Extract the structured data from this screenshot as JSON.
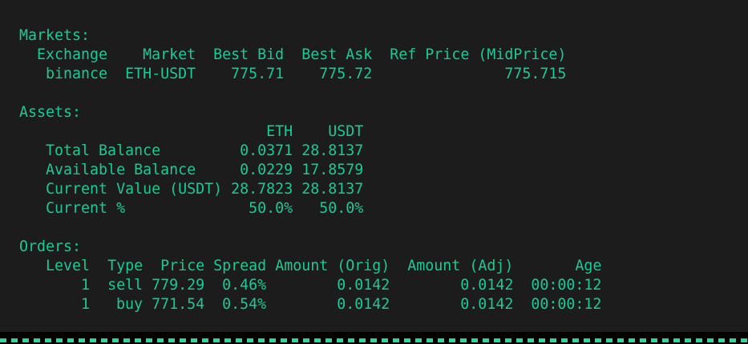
{
  "terminal": {
    "background_color": "#1c1c1c",
    "text_color": "#1cc995",
    "separator_color": "#2fd6a3"
  },
  "markets": {
    "heading": "Markets:",
    "columns": [
      "Exchange",
      "Market",
      "Best Bid",
      "Best Ask",
      "Ref Price (MidPrice)"
    ],
    "rows": [
      {
        "exchange": "binance",
        "market": "ETH-USDT",
        "best_bid": "775.71",
        "best_ask": "775.72",
        "ref_price": "775.715"
      }
    ]
  },
  "assets": {
    "heading": "Assets:",
    "columns": [
      "ETH",
      "USDT"
    ],
    "rows": [
      {
        "label": "Total Balance",
        "eth": "0.0371",
        "usdt": "28.8137"
      },
      {
        "label": "Available Balance",
        "eth": "0.0229",
        "usdt": "17.8579"
      },
      {
        "label": "Current Value (USDT)",
        "eth": "28.7823",
        "usdt": "28.8137"
      },
      {
        "label": "Current %",
        "eth": "50.0%",
        "usdt": "50.0%"
      }
    ]
  },
  "orders": {
    "heading": "Orders:",
    "columns": [
      "Level",
      "Type",
      "Price",
      "Spread",
      "Amount (Orig)",
      "Amount (Adj)",
      "Age"
    ],
    "rows": [
      {
        "level": "1",
        "type": "sell",
        "price": "779.29",
        "spread": "0.46%",
        "amount_orig": "0.0142",
        "amount_adj": "0.0142",
        "age": "00:00:12"
      },
      {
        "level": "1",
        "type": "buy",
        "price": "771.54",
        "spread": "0.54%",
        "amount_orig": "0.0142",
        "amount_adj": "0.0142",
        "age": "00:00:12"
      }
    ]
  }
}
